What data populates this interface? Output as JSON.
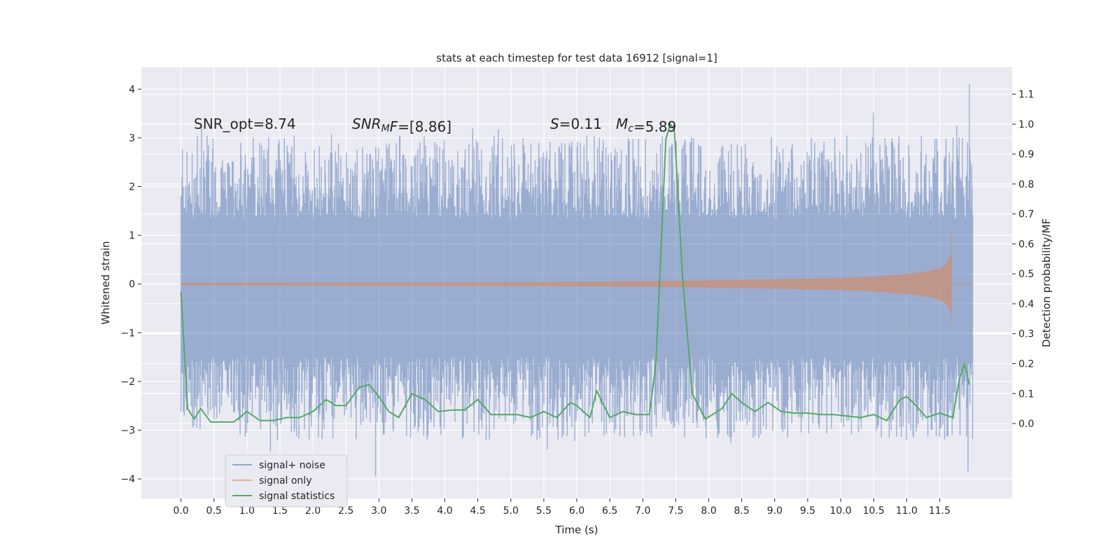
{
  "chart_data": {
    "type": "line",
    "title": "stats at each timestep for test data 16912 [signal=1]",
    "xlabel": "Time (s)",
    "ylabel": "Whitened strain",
    "y2label": "Detection probability/MF",
    "xlim": [
      -0.6,
      12.6
    ],
    "ylim": [
      -4.4,
      4.45
    ],
    "y2lim": [
      -0.25,
      1.19
    ],
    "xticks": [
      0.0,
      0.5,
      1.0,
      1.5,
      2.0,
      2.5,
      3.0,
      3.5,
      4.0,
      4.5,
      5.0,
      5.5,
      6.0,
      6.5,
      7.0,
      7.5,
      8.0,
      8.5,
      9.0,
      9.5,
      10.0,
      10.5,
      11.0,
      11.5
    ],
    "xtick_labels": [
      "0.0",
      "0.5",
      "1.0",
      "1.5",
      "2.0",
      "2.5",
      "3.0",
      "3.5",
      "4.0",
      "4.5",
      "5.0",
      "5.5",
      "6.0",
      "6.5",
      "7.0",
      "7.5",
      "8.0",
      "8.5",
      "9.0",
      "9.5",
      "10.0",
      "10.5",
      "11.0",
      "11.5"
    ],
    "yticks": [
      -4,
      -3,
      -2,
      -1,
      0,
      1,
      2,
      3,
      4
    ],
    "ytick_labels": [
      "−4",
      "−3",
      "−2",
      "−1",
      "0",
      "1",
      "2",
      "3",
      "4"
    ],
    "y2ticks": [
      0.0,
      0.1,
      0.2,
      0.3,
      0.4,
      0.5,
      0.6,
      0.7,
      0.8,
      0.9,
      1.0,
      1.1
    ],
    "y2tick_labels": [
      "0.0",
      "0.1",
      "0.2",
      "0.3",
      "0.4",
      "0.5",
      "0.6",
      "0.7",
      "0.8",
      "0.9",
      "1.0",
      "1.1"
    ],
    "annotations": [
      {
        "id": "snr-opt",
        "parts": [
          {
            "t": "SNR_opt=8.74"
          }
        ]
      },
      {
        "id": "snr-mf",
        "parts": [
          {
            "t": "SNR",
            "i": true
          },
          {
            "t": "M",
            "i": true,
            "sub": true
          },
          {
            "t": "F",
            "i": true
          },
          {
            "t": "=[8.86]"
          }
        ]
      },
      {
        "id": "s-value",
        "parts": [
          {
            "t": "S",
            "i": true
          },
          {
            "t": "=0.11"
          }
        ]
      },
      {
        "id": "mc-value",
        "parts": [
          {
            "t": "M",
            "i": true
          },
          {
            "t": "c",
            "i": true,
            "sub": true
          },
          {
            "t": "=5.89"
          }
        ]
      }
    ],
    "series": [
      {
        "name": "signal+ noise",
        "color": "#4c72b0",
        "axis": "left",
        "style": "dense noise band",
        "t_range": [
          0.0,
          12.0
        ],
        "core_band": [
          -1.5,
          1.35
        ],
        "envelope_peaks": [
          3.65,
          3.0,
          2.9
        ],
        "envelope_troughs": [
          -3.9,
          -3.6,
          -3.3
        ],
        "extremes": [
          {
            "x": 11.95,
            "y": 4.1
          },
          {
            "x": 2.95,
            "y": -3.95
          },
          {
            "x": 11.93,
            "y": -3.85
          }
        ]
      },
      {
        "name": "signal only",
        "color": "#dd8452",
        "axis": "left",
        "style": "chirp",
        "merger_time": 11.68,
        "merger_amplitude": [
          -0.85,
          1.1
        ],
        "x": [
          0.0,
          2.0,
          4.0,
          6.0,
          7.0,
          8.0,
          9.0,
          10.0,
          10.5,
          11.0,
          11.3,
          11.5,
          11.6,
          11.68
        ],
        "envelope": [
          0.02,
          0.025,
          0.03,
          0.04,
          0.05,
          0.07,
          0.09,
          0.12,
          0.15,
          0.2,
          0.25,
          0.32,
          0.4,
          0.6
        ]
      },
      {
        "name": "signal statistics",
        "color": "#55a868",
        "axis": "right",
        "x": [
          0.0,
          0.1,
          0.2,
          0.3,
          0.45,
          0.6,
          0.8,
          1.0,
          1.2,
          1.4,
          1.6,
          1.8,
          2.0,
          2.2,
          2.35,
          2.5,
          2.7,
          2.85,
          3.0,
          3.15,
          3.3,
          3.5,
          3.7,
          3.9,
          4.1,
          4.3,
          4.5,
          4.7,
          4.9,
          5.1,
          5.3,
          5.5,
          5.7,
          5.9,
          6.0,
          6.2,
          6.3,
          6.5,
          6.7,
          6.9,
          7.1,
          7.2,
          7.28,
          7.35,
          7.42,
          7.48,
          7.6,
          7.75,
          7.95,
          8.2,
          8.35,
          8.5,
          8.7,
          8.9,
          9.1,
          9.3,
          9.5,
          9.7,
          9.9,
          10.1,
          10.3,
          10.5,
          10.7,
          10.9,
          11.0,
          11.1,
          11.3,
          11.5,
          11.7,
          11.8,
          11.88,
          11.95
        ],
        "y": [
          0.44,
          0.05,
          0.015,
          0.05,
          0.005,
          0.005,
          0.005,
          0.04,
          0.01,
          0.01,
          0.02,
          0.02,
          0.04,
          0.08,
          0.06,
          0.06,
          0.12,
          0.13,
          0.09,
          0.04,
          0.02,
          0.1,
          0.08,
          0.04,
          0.045,
          0.045,
          0.08,
          0.03,
          0.03,
          0.03,
          0.02,
          0.04,
          0.02,
          0.07,
          0.06,
          0.02,
          0.11,
          0.02,
          0.04,
          0.03,
          0.03,
          0.2,
          0.6,
          0.95,
          1.0,
          0.98,
          0.5,
          0.1,
          0.015,
          0.05,
          0.1,
          0.07,
          0.04,
          0.07,
          0.04,
          0.035,
          0.035,
          0.03,
          0.03,
          0.025,
          0.02,
          0.03,
          0.01,
          0.08,
          0.09,
          0.07,
          0.02,
          0.035,
          0.02,
          0.15,
          0.2,
          0.13
        ]
      }
    ],
    "legend": {
      "location": "lower-left",
      "entries": [
        "signal+ noise",
        "signal only",
        "signal statistics"
      ]
    }
  }
}
